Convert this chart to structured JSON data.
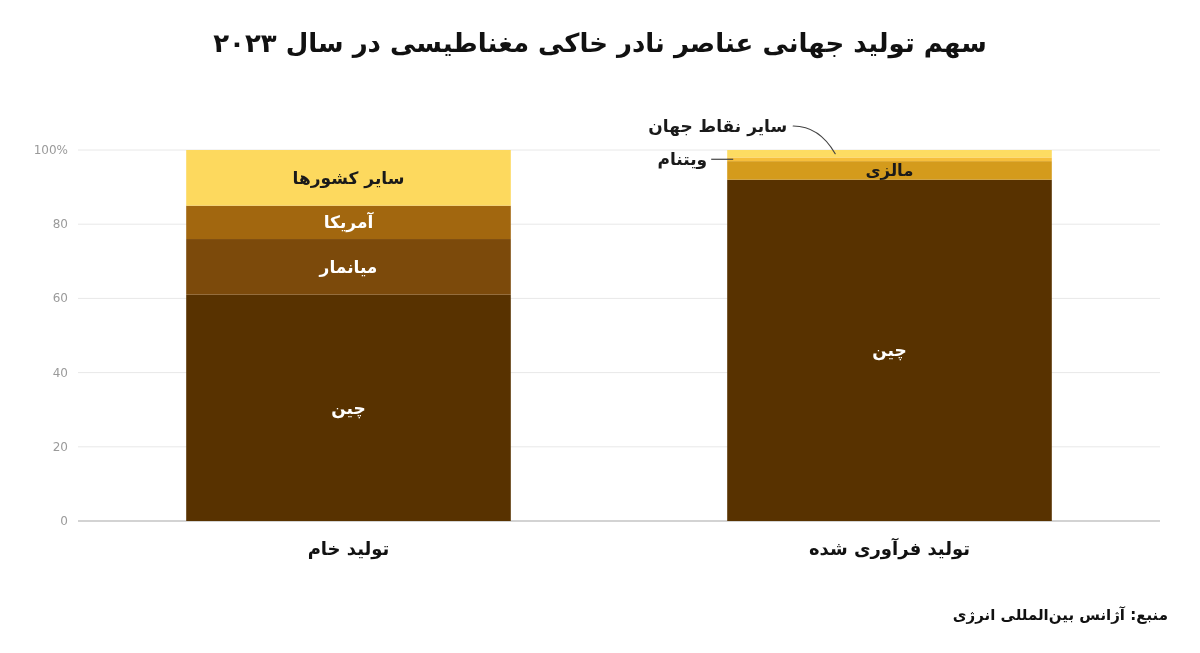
{
  "chart_data": {
    "type": "bar",
    "title": "سهم تولید جهانی عناصر نادر خاکی مغناطیسی در سال ۲۰۲۳",
    "categories": [
      "تولید خام",
      "تولید فرآوری شده"
    ],
    "stacked": true,
    "series": [
      {
        "name": "چین",
        "color": "#583200",
        "values": [
          61,
          92
        ]
      },
      {
        "name": "میانمار",
        "color": "#7c4a0b",
        "values": [
          15,
          null
        ]
      },
      {
        "name": "آمریکا",
        "color": "#a2670f",
        "values": [
          9,
          null
        ]
      },
      {
        "name": "سایر کشورها",
        "color": "#fdd95e",
        "values": [
          15,
          null
        ]
      },
      {
        "name": "مالزی",
        "color": "#d49b1c",
        "values": [
          null,
          5
        ]
      },
      {
        "name": "ویتنام",
        "color": "#f6be3c",
        "values": [
          null,
          1
        ]
      },
      {
        "name": "سایر نقاط جهان",
        "color": "#fddc62",
        "values": [
          null,
          2
        ]
      }
    ],
    "ylim": [
      0,
      100
    ],
    "yticks": [
      0,
      20,
      40,
      60,
      80,
      {
        "value": 100,
        "label": "100%"
      }
    ],
    "grid": "y",
    "annotations": [
      "منبع: آژانس بین‌المللی انرژی"
    ]
  }
}
